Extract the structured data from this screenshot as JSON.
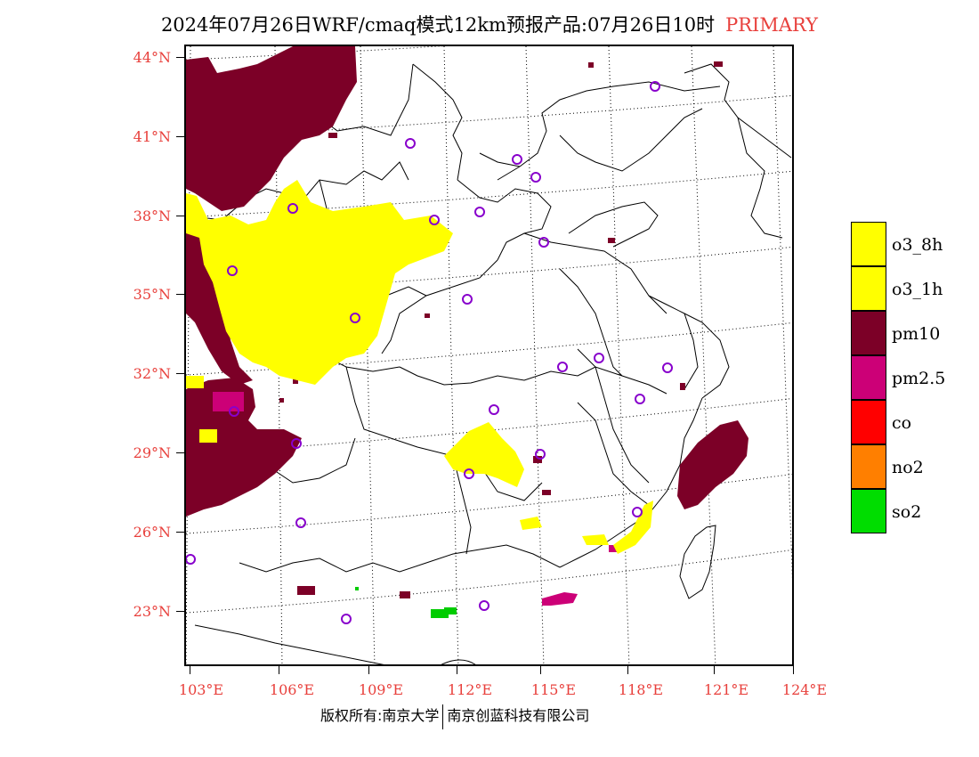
{
  "header": {
    "title": "2024年07月26日WRF/cmaq模式12km预报产品:07月26日10时",
    "tag": "PRIMARY"
  },
  "map": {
    "lat_labels": [
      "44°N",
      "41°N",
      "38°N",
      "35°N",
      "32°N",
      "29°N",
      "26°N",
      "23°N"
    ],
    "lon_labels": [
      "103°E",
      "106°E",
      "109°E",
      "112°E",
      "115°E",
      "118°E",
      "121°E",
      "124°E"
    ],
    "overlay_colors": {
      "o3": "#ffff00",
      "pm10": "#7c0027",
      "pm25": "#cc0077",
      "so2": "#00cc00",
      "station": "#8800cc"
    }
  },
  "legend": {
    "items": [
      {
        "label": "o3_8h",
        "color": "#ffff00"
      },
      {
        "label": "o3_1h",
        "color": "#ffff00"
      },
      {
        "label": "pm10",
        "color": "#7c0027"
      },
      {
        "label": "pm2.5",
        "color": "#cc0077"
      },
      {
        "label": "co",
        "color": "#ff0000"
      },
      {
        "label": "no2",
        "color": "#ff7f00"
      },
      {
        "label": "so2",
        "color": "#00dd00"
      }
    ]
  },
  "footer": {
    "left": "版权所有:南京大学",
    "right": "南京创蓝科技有限公司"
  }
}
